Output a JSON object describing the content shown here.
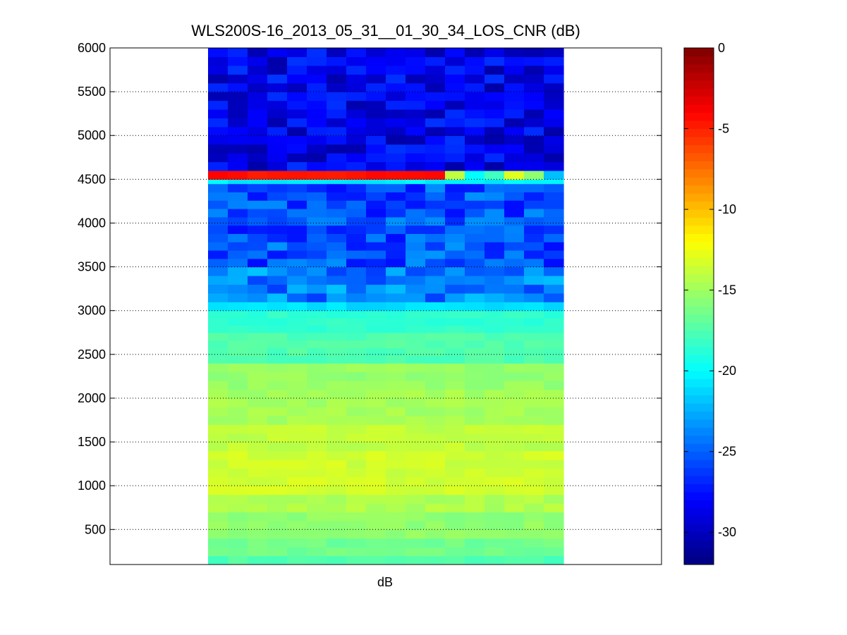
{
  "chart_data": {
    "type": "heatmap",
    "title": "WLS200S-16_2013_05_31__01_30_34_LOS_CNR (dB)",
    "xlabel": "dB",
    "ylabel": "",
    "ylim": [
      100,
      6000
    ],
    "yticks": [
      500,
      1000,
      1500,
      2000,
      2500,
      3000,
      3500,
      4000,
      4500,
      5000,
      5500,
      6000
    ],
    "grid": "horizontal-dotted",
    "colormap": "jet",
    "colorbar": {
      "min": -32,
      "max": 0,
      "ticks": [
        0,
        -5,
        -10,
        -15,
        -20,
        -25,
        -30
      ]
    },
    "columns": 18,
    "bands": [
      {
        "from": 100,
        "to": 200,
        "value": -17.5
      },
      {
        "from": 200,
        "to": 400,
        "value": -16.5
      },
      {
        "from": 400,
        "to": 700,
        "value": -15.5
      },
      {
        "from": 700,
        "to": 900,
        "value": -14.5
      },
      {
        "from": 900,
        "to": 1400,
        "value": -13.5
      },
      {
        "from": 1400,
        "to": 1700,
        "value": -14.0
      },
      {
        "from": 1700,
        "to": 2100,
        "value": -14.8
      },
      {
        "from": 2100,
        "to": 2400,
        "value": -15.3
      },
      {
        "from": 2400,
        "to": 2750,
        "value": -17.5
      },
      {
        "from": 2750,
        "to": 3000,
        "value": -18.5
      },
      {
        "from": 3000,
        "to": 3100,
        "value": -21.0
      },
      {
        "from": 3100,
        "to": 3500,
        "value": -24.0
      },
      {
        "from": 3500,
        "to": 4450,
        "value": -25.5
      },
      {
        "from": 4450,
        "to": 4500,
        "value": -20.5
      },
      {
        "from": 4500,
        "to": 4600,
        "value": -4.5,
        "right_values": [
          -14.0,
          -20.0,
          -18.0,
          -13.0,
          -15.5,
          -22.0
        ]
      },
      {
        "from": 4600,
        "to": 6000,
        "value": -28.5
      }
    ]
  }
}
